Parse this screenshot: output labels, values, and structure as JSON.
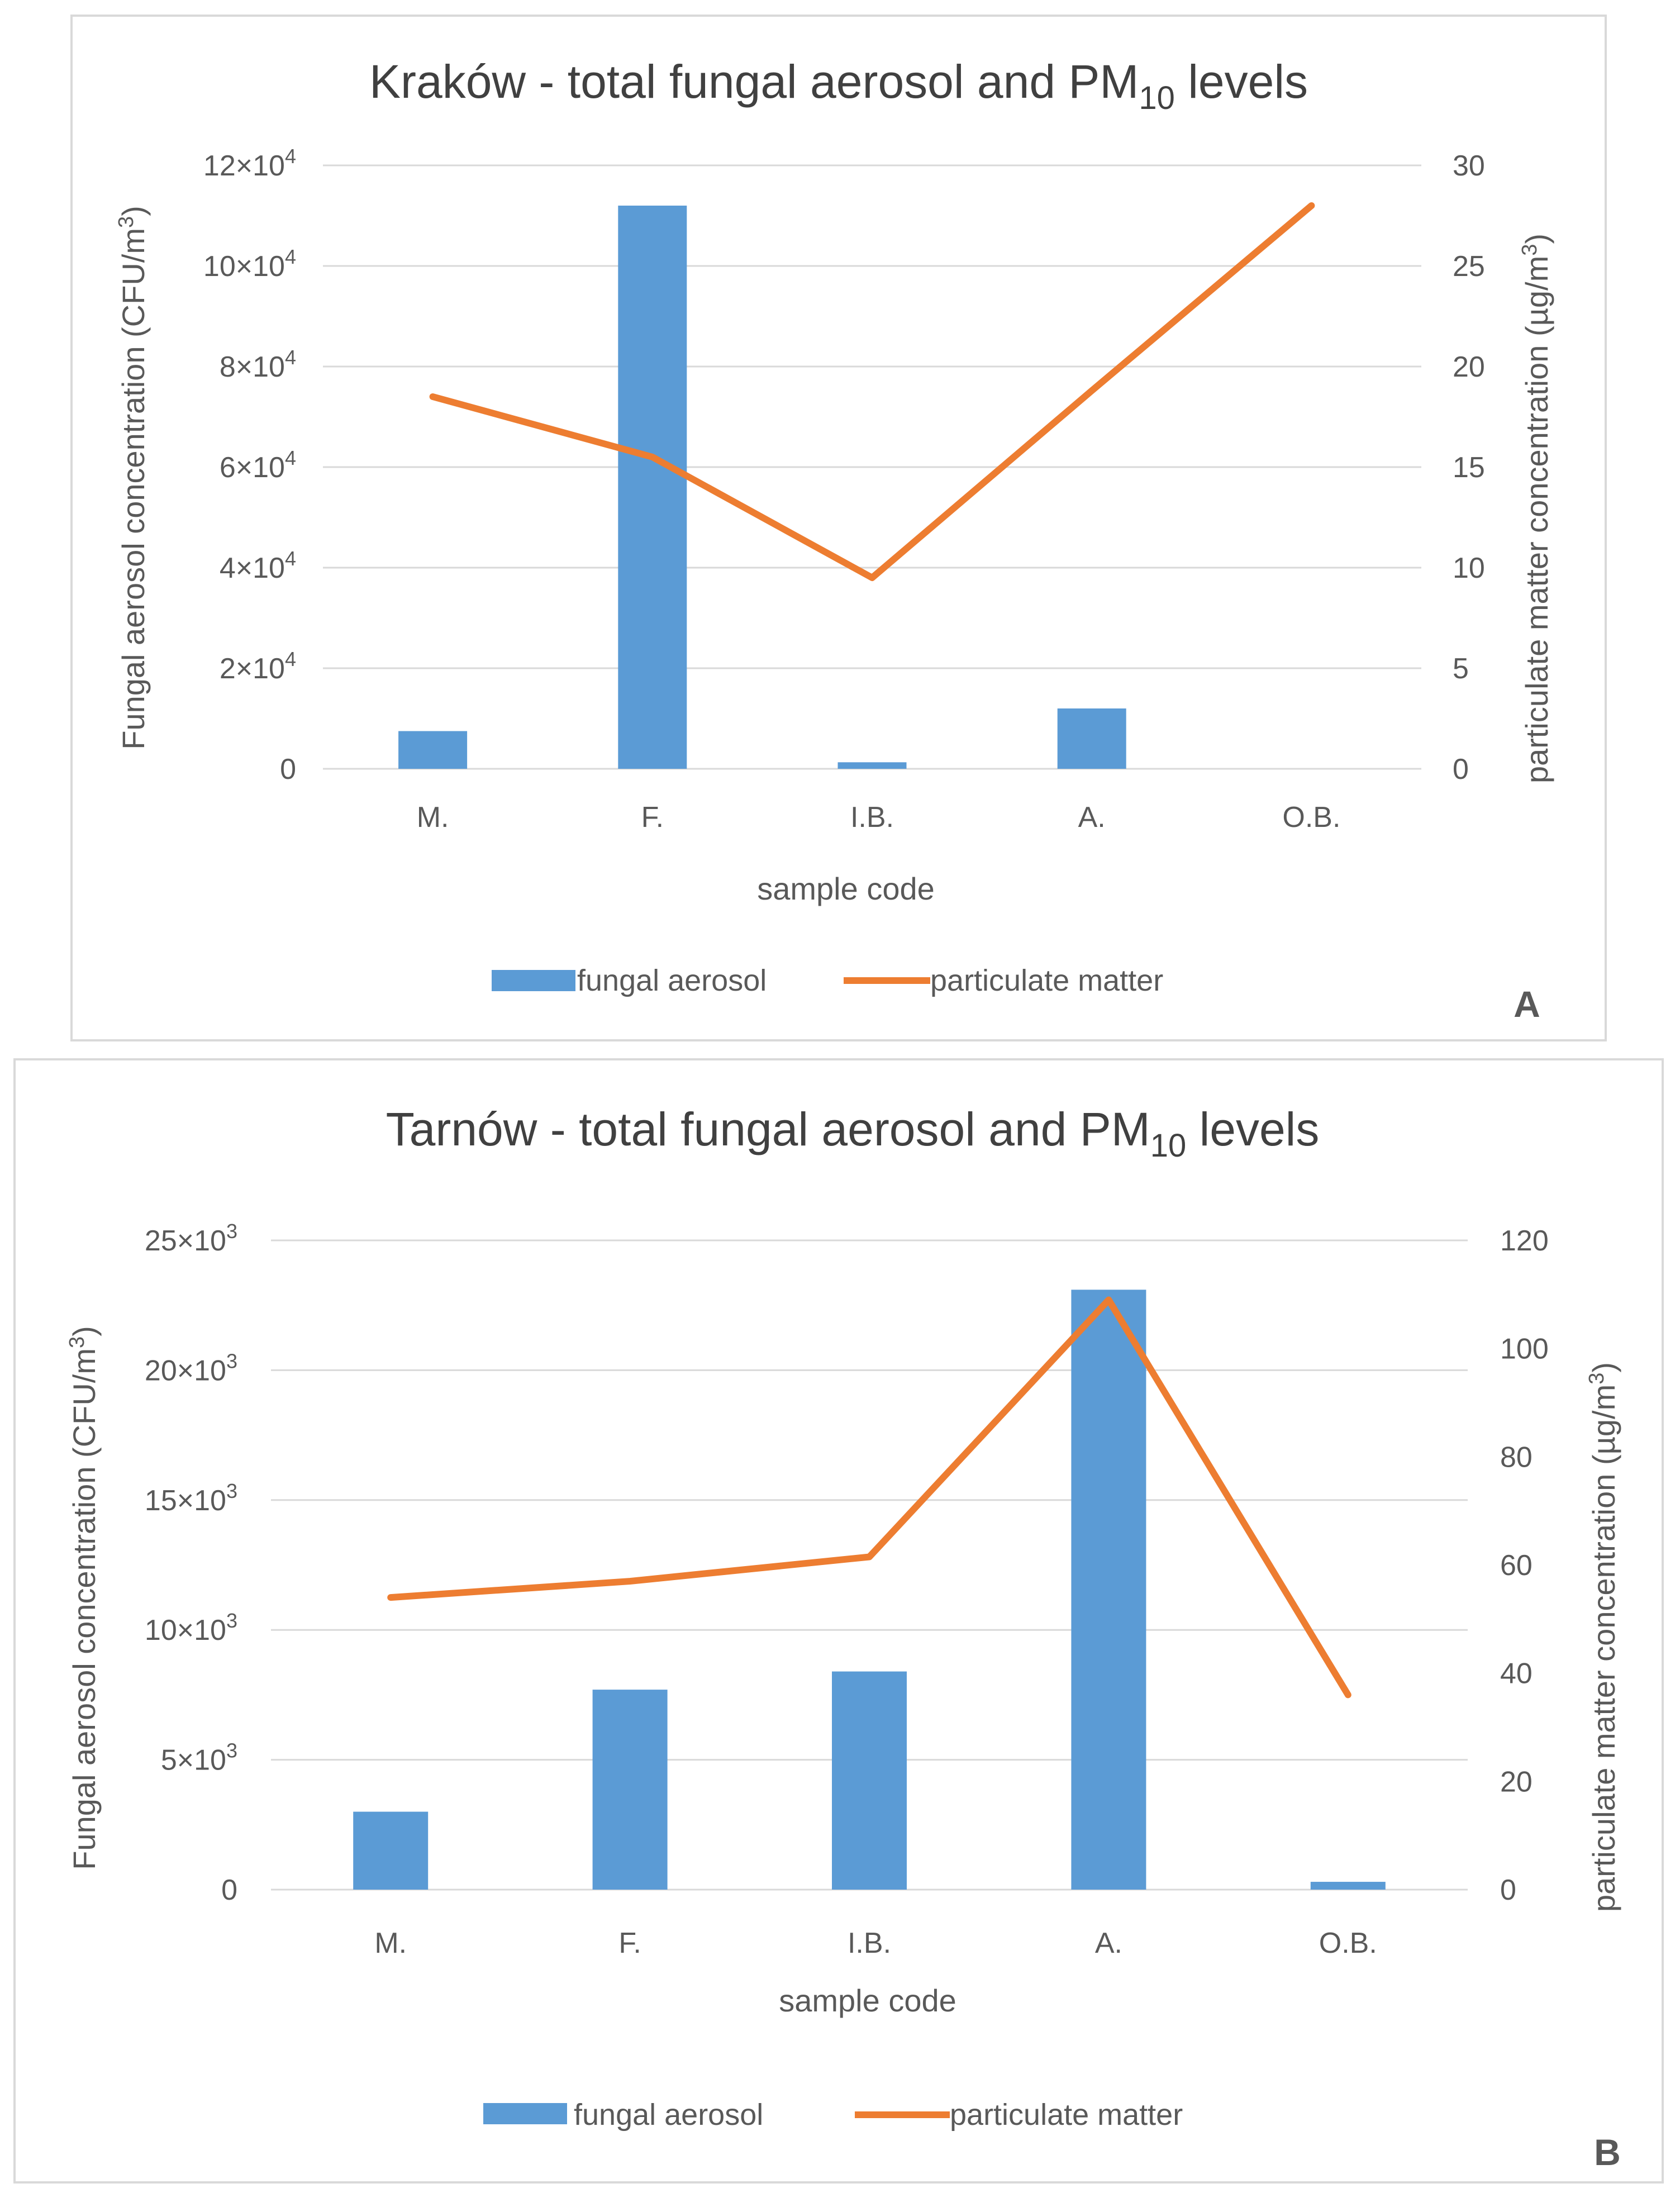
{
  "chart_data": [
    {
      "type": "bar+line",
      "panel_label": "A",
      "title": "Kraków - total fungal aerosol and PM",
      "title_subscript": "10",
      "title_suffix": " levels",
      "categories": [
        "M.",
        "F.",
        "I.B.",
        "A.",
        "O.B."
      ],
      "xlabel": "sample code",
      "ylabel_left": "Fungal aerosol concentration (CFU/m",
      "ylabel_left_sup": "3",
      "ylabel_left_end": ")",
      "ylabel_right": "particulate matter concentration (µg/m",
      "ylabel_right_sup": "3",
      "ylabel_right_end": ")",
      "ylim_left": [
        0,
        120000
      ],
      "ylim_right": [
        0,
        30
      ],
      "left_ticks": [
        {
          "value": 0,
          "label": "0",
          "exp": ""
        },
        {
          "value": 20000,
          "label": "2×10",
          "exp": "4"
        },
        {
          "value": 40000,
          "label": "4×10",
          "exp": "4"
        },
        {
          "value": 60000,
          "label": "6×10",
          "exp": "4"
        },
        {
          "value": 80000,
          "label": "8×10",
          "exp": "4"
        },
        {
          "value": 100000,
          "label": "10×10",
          "exp": "4"
        },
        {
          "value": 120000,
          "label": "12×10",
          "exp": "4"
        }
      ],
      "right_ticks": [
        0,
        5,
        10,
        15,
        20,
        25,
        30
      ],
      "series": [
        {
          "name": "fungal aerosol",
          "kind": "bar",
          "axis": "left",
          "color": "#5B9BD5",
          "values": [
            7500,
            112000,
            1300,
            12000,
            0
          ]
        },
        {
          "name": "particulate matter",
          "kind": "line",
          "axis": "right",
          "color": "#ED7D31",
          "values": [
            18.5,
            15.5,
            9.5,
            18.8,
            28
          ]
        }
      ],
      "legend": [
        "fungal aerosol",
        "particulate matter"
      ]
    },
    {
      "type": "bar+line",
      "panel_label": "B",
      "title": "Tarnów - total fungal aerosol and PM",
      "title_subscript": "10",
      "title_suffix": " levels",
      "categories": [
        "M.",
        "F.",
        "I.B.",
        "A.",
        "O.B."
      ],
      "xlabel": "sample code",
      "ylabel_left": "Fungal aerosol concentration (CFU/m",
      "ylabel_left_sup": "3",
      "ylabel_left_end": ")",
      "ylabel_right": "particulate matter concentration (µg/m",
      "ylabel_right_sup": "3",
      "ylabel_right_end": ")",
      "ylim_left": [
        0,
        25000
      ],
      "ylim_right": [
        0,
        120
      ],
      "left_ticks": [
        {
          "value": 0,
          "label": "0",
          "exp": ""
        },
        {
          "value": 5000,
          "label": "5×10",
          "exp": "3"
        },
        {
          "value": 10000,
          "label": "10×10",
          "exp": "3"
        },
        {
          "value": 15000,
          "label": "15×10",
          "exp": "3"
        },
        {
          "value": 20000,
          "label": "20×10",
          "exp": "3"
        },
        {
          "value": 25000,
          "label": "25×10",
          "exp": "3"
        }
      ],
      "right_ticks": [
        0,
        20,
        40,
        60,
        80,
        100,
        120
      ],
      "series": [
        {
          "name": "fungal aerosol",
          "kind": "bar",
          "axis": "left",
          "color": "#5B9BD5",
          "values": [
            3000,
            7700,
            8400,
            23100,
            300
          ]
        },
        {
          "name": "particulate matter",
          "kind": "line",
          "axis": "right",
          "color": "#ED7D31",
          "values": [
            54,
            57,
            61.5,
            109,
            36
          ]
        }
      ],
      "legend": [
        "fungal aerosol",
        "particulate matter"
      ]
    }
  ]
}
